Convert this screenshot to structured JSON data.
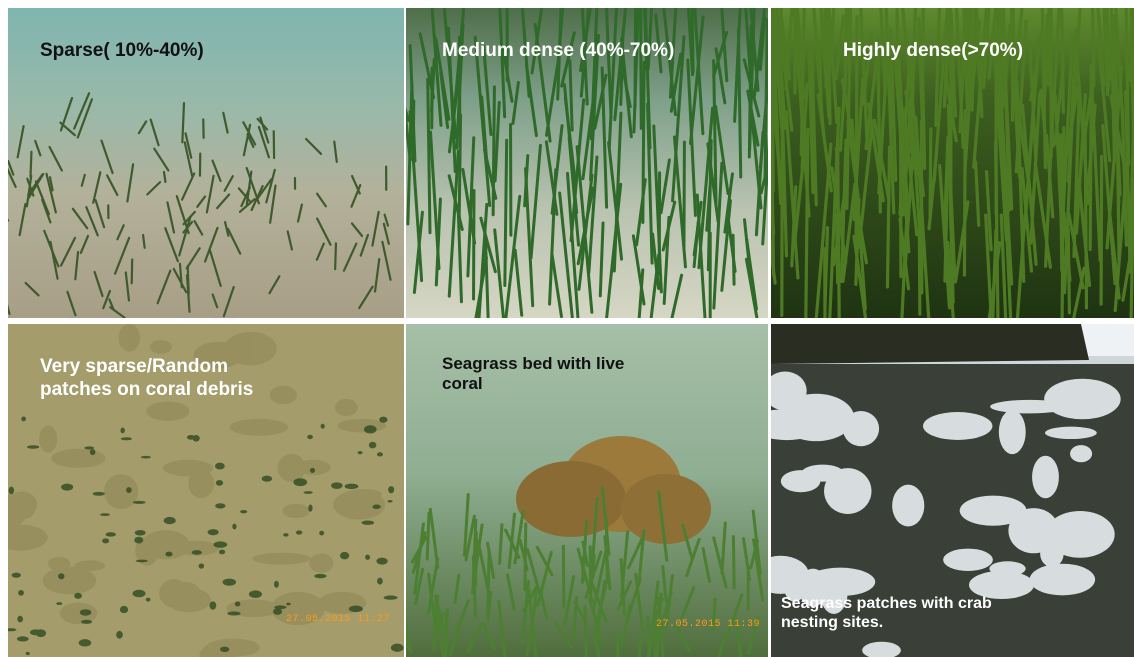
{
  "panels": [
    {
      "caption": "Sparse( 10%-40%)",
      "caption_color": "#111111"
    },
    {
      "caption": "Medium dense (40%-70%)",
      "caption_color": "#ffffff"
    },
    {
      "caption": "Highly dense(>70%)",
      "caption_color": "#ffffff"
    },
    {
      "caption": "Very sparse/Random\npatches on coral debris",
      "caption_color": "#ffffff",
      "timestamp": "27.05.2015 11:27"
    },
    {
      "caption": "Seagrass bed with live\ncoral",
      "caption_color": "#111111",
      "timestamp": "27.05.2015 11:39"
    },
    {
      "caption": "Seagrass patches with crab\nnesting sites.",
      "caption_color": "#ffffff"
    }
  ]
}
